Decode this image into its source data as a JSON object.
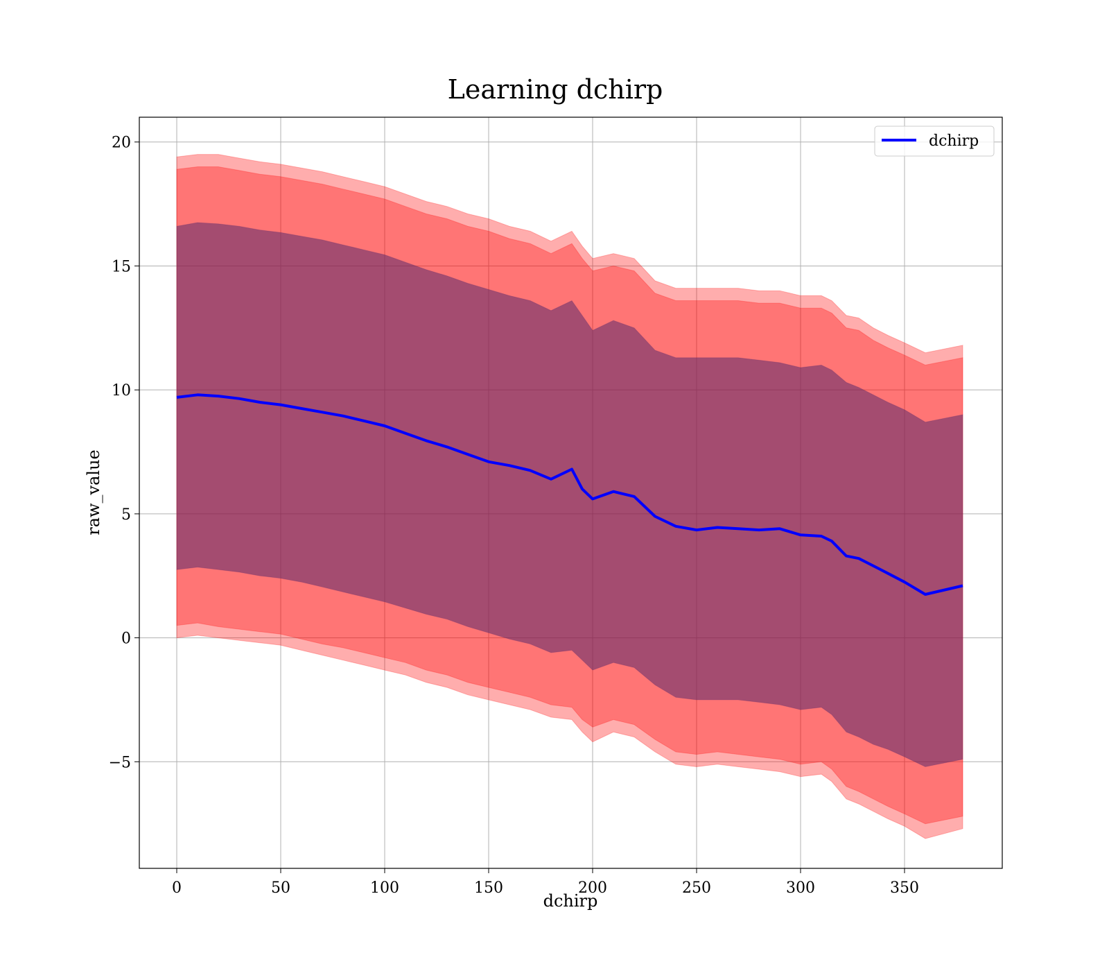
{
  "chart_data": {
    "type": "line",
    "title": "Learning dchirp",
    "xlabel": "dchirp",
    "ylabel": "raw_value",
    "xlim": [
      -18,
      397
    ],
    "ylim": [
      -9.3,
      21
    ],
    "x_ticks": [
      0,
      50,
      100,
      150,
      200,
      250,
      300,
      350
    ],
    "y_ticks": [
      -5,
      0,
      5,
      10,
      15,
      20
    ],
    "x_tick_labels": [
      "0",
      "50",
      "100",
      "150",
      "200",
      "250",
      "300",
      "350"
    ],
    "y_tick_labels": [
      "−5",
      "0",
      "5",
      "10",
      "15",
      "20"
    ],
    "grid": true,
    "legend_position": "top-right",
    "x": [
      0,
      10,
      20,
      30,
      40,
      50,
      60,
      70,
      80,
      90,
      100,
      110,
      120,
      130,
      140,
      150,
      160,
      170,
      180,
      190,
      195,
      200,
      210,
      220,
      230,
      240,
      250,
      260,
      270,
      280,
      290,
      300,
      310,
      315,
      322,
      328,
      335,
      342,
      350,
      360,
      378
    ],
    "series": [
      {
        "name": "dchirp",
        "color": "#0000ff",
        "values": [
          9.7,
          9.8,
          9.75,
          9.65,
          9.5,
          9.4,
          9.25,
          9.1,
          8.95,
          8.75,
          8.55,
          8.25,
          7.95,
          7.7,
          7.4,
          7.1,
          6.95,
          6.75,
          6.4,
          6.8,
          6.0,
          5.6,
          5.9,
          5.7,
          4.9,
          4.5,
          4.35,
          4.45,
          4.4,
          4.35,
          4.4,
          4.15,
          4.1,
          3.9,
          3.3,
          3.2,
          2.9,
          2.6,
          2.25,
          1.75,
          2.1
        ]
      }
    ],
    "bands": [
      {
        "name": "outer",
        "fill": "#ff0000",
        "opacity": 0.32,
        "lower": [
          0.0,
          0.1,
          0.0,
          -0.1,
          -0.2,
          -0.3,
          -0.5,
          -0.7,
          -0.9,
          -1.1,
          -1.3,
          -1.5,
          -1.8,
          -2.0,
          -2.3,
          -2.5,
          -2.7,
          -2.9,
          -3.2,
          -3.3,
          -3.8,
          -4.2,
          -3.8,
          -4.0,
          -4.6,
          -5.1,
          -5.2,
          -5.1,
          -5.2,
          -5.3,
          -5.4,
          -5.6,
          -5.5,
          -5.8,
          -6.5,
          -6.7,
          -7.0,
          -7.3,
          -7.6,
          -8.1,
          -7.7
        ],
        "upper": [
          19.4,
          19.5,
          19.5,
          19.35,
          19.2,
          19.1,
          18.95,
          18.8,
          18.6,
          18.4,
          18.2,
          17.9,
          17.6,
          17.4,
          17.1,
          16.9,
          16.6,
          16.4,
          16.0,
          16.4,
          15.8,
          15.3,
          15.5,
          15.3,
          14.4,
          14.1,
          14.1,
          14.1,
          14.1,
          14.0,
          14.0,
          13.8,
          13.8,
          13.6,
          13.0,
          12.9,
          12.5,
          12.2,
          11.9,
          11.5,
          11.8
        ]
      },
      {
        "name": "middle",
        "fill": "#ff0000",
        "opacity": 0.32,
        "lower": [
          0.5,
          0.6,
          0.45,
          0.35,
          0.25,
          0.15,
          -0.05,
          -0.25,
          -0.4,
          -0.6,
          -0.8,
          -1.0,
          -1.3,
          -1.5,
          -1.8,
          -2.0,
          -2.2,
          -2.4,
          -2.7,
          -2.8,
          -3.3,
          -3.6,
          -3.3,
          -3.5,
          -4.1,
          -4.6,
          -4.7,
          -4.6,
          -4.7,
          -4.8,
          -4.9,
          -5.1,
          -5.0,
          -5.3,
          -6.0,
          -6.2,
          -6.5,
          -6.8,
          -7.1,
          -7.5,
          -7.2
        ],
        "upper": [
          18.9,
          19.0,
          19.0,
          18.85,
          18.7,
          18.6,
          18.45,
          18.3,
          18.1,
          17.9,
          17.7,
          17.4,
          17.1,
          16.9,
          16.6,
          16.4,
          16.1,
          15.9,
          15.5,
          15.9,
          15.3,
          14.8,
          15.0,
          14.8,
          13.9,
          13.6,
          13.6,
          13.6,
          13.6,
          13.5,
          13.5,
          13.3,
          13.3,
          13.1,
          12.5,
          12.4,
          12.0,
          11.7,
          11.4,
          11.0,
          11.3
        ]
      },
      {
        "name": "inner",
        "fill": "#5a2a6b",
        "opacity": 0.55,
        "lower": [
          2.75,
          2.85,
          2.75,
          2.65,
          2.5,
          2.4,
          2.25,
          2.05,
          1.85,
          1.65,
          1.45,
          1.2,
          0.95,
          0.75,
          0.45,
          0.2,
          -0.05,
          -0.25,
          -0.6,
          -0.5,
          -0.9,
          -1.3,
          -1.0,
          -1.2,
          -1.9,
          -2.4,
          -2.5,
          -2.5,
          -2.5,
          -2.6,
          -2.7,
          -2.9,
          -2.8,
          -3.1,
          -3.8,
          -4.0,
          -4.3,
          -4.5,
          -4.8,
          -5.2,
          -4.9
        ],
        "upper": [
          16.6,
          16.75,
          16.7,
          16.6,
          16.45,
          16.35,
          16.2,
          16.05,
          15.85,
          15.65,
          15.45,
          15.15,
          14.85,
          14.6,
          14.3,
          14.05,
          13.8,
          13.6,
          13.2,
          13.6,
          13.0,
          12.4,
          12.8,
          12.5,
          11.6,
          11.3,
          11.3,
          11.3,
          11.3,
          11.2,
          11.1,
          10.9,
          11.0,
          10.8,
          10.3,
          10.1,
          9.8,
          9.5,
          9.2,
          8.7,
          9.0
        ]
      }
    ]
  }
}
